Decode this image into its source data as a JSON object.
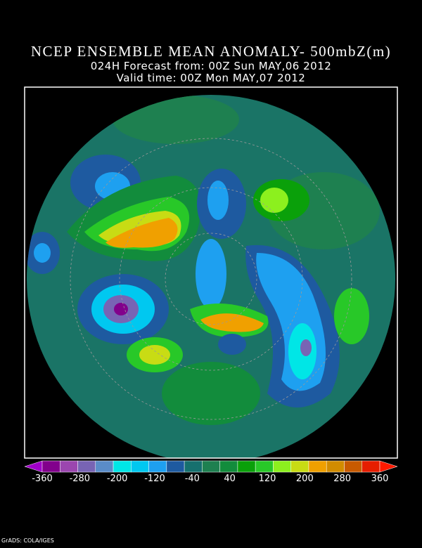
{
  "header": {
    "title": "NCEP ENSEMBLE MEAN ANOMALY- 500mbZ(m)",
    "forecast": "024H Forecast from: 00Z Sun MAY,06 2012",
    "valid": "Valid time: 00Z Mon MAY,07 2012"
  },
  "colorbar": {
    "ticks": [
      -360,
      -280,
      -200,
      -120,
      -40,
      40,
      120,
      200,
      280,
      360
    ],
    "colors": [
      "#a000c8",
      "#82008c",
      "#9b46af",
      "#7864b4",
      "#5a8cc8",
      "#00e6e6",
      "#00c8f0",
      "#1ea0f0",
      "#1e5aa0",
      "#16706e",
      "#1e8050",
      "#128c3c",
      "#0aa00a",
      "#28c828",
      "#8cf01e",
      "#c8dc14",
      "#f0a000",
      "#d28c00",
      "#c85a00",
      "#e61e00",
      "#ff1a00"
    ]
  },
  "footer": {
    "credit": "GrADS: COLA/IGES"
  }
}
